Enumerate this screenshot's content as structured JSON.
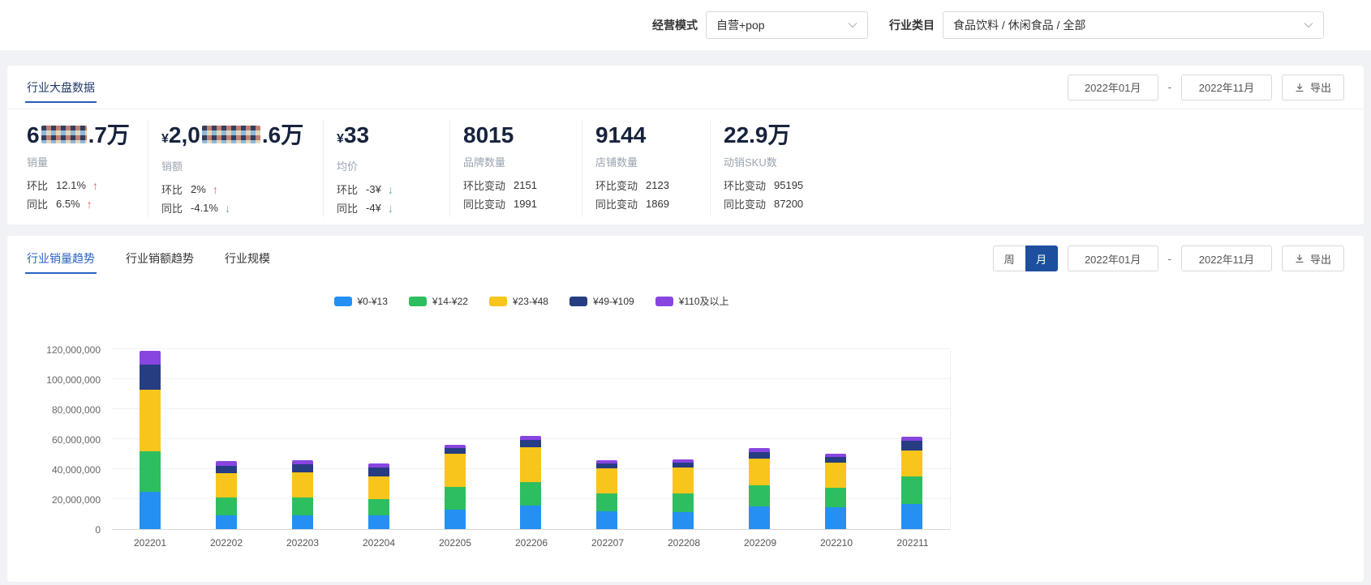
{
  "filters": {
    "mode_label": "经营模式",
    "mode_value": "自营+pop",
    "category_label": "行业类目",
    "category_value": "食品饮料 / 休闲食品 / 全部"
  },
  "overview": {
    "title": "行业大盘数据",
    "date_start": "2022年01月",
    "date_separator": "-",
    "date_end": "2022年11月",
    "export_label": "导出",
    "kpis": [
      {
        "prefix": "6",
        "censored": true,
        "censor_width": 56,
        "suffix": ".7万",
        "label": "销量",
        "metrics": [
          {
            "name": "环比",
            "value": "12.1%",
            "arrow": "up"
          },
          {
            "name": "同比",
            "value": "6.5%",
            "arrow": "up"
          }
        ]
      },
      {
        "currency": "¥",
        "prefix": "2,0",
        "censored": true,
        "censor_width": 72,
        "suffix": ".6万",
        "label": "销额",
        "metrics": [
          {
            "name": "环比",
            "value": "2%",
            "arrow": "up"
          },
          {
            "name": "同比",
            "value": "-4.1%",
            "arrow": "down"
          }
        ]
      },
      {
        "currency": "¥",
        "prefix": "33",
        "censored": false,
        "label": "均价",
        "metrics": [
          {
            "name": "环比",
            "value": "-3¥",
            "arrow": "down"
          },
          {
            "name": "同比",
            "value": "-4¥",
            "arrow": "down"
          }
        ]
      },
      {
        "prefix": "8015",
        "censored": false,
        "label": "品牌数量",
        "metrics": [
          {
            "name": "环比变动",
            "value": "2151"
          },
          {
            "name": "同比变动",
            "value": "1991"
          }
        ]
      },
      {
        "prefix": "9144",
        "censored": false,
        "label": "店铺数量",
        "metrics": [
          {
            "name": "环比变动",
            "value": "2123"
          },
          {
            "name": "同比变动",
            "value": "1869"
          }
        ]
      },
      {
        "prefix": "22.9万",
        "censored": false,
        "label": "动销SKU数",
        "metrics": [
          {
            "name": "环比变动",
            "value": "95195"
          },
          {
            "name": "同比变动",
            "value": "87200"
          }
        ]
      }
    ],
    "arrow_up_glyph": "↑",
    "arrow_down_glyph": "↓"
  },
  "trends": {
    "tabs": [
      {
        "label": "行业销量趋势",
        "active": true
      },
      {
        "label": "行业销额趋势",
        "active": false
      },
      {
        "label": "行业规模",
        "active": false
      }
    ],
    "period_options": [
      {
        "label": "周",
        "active": false
      },
      {
        "label": "月",
        "active": true
      }
    ],
    "date_start": "2022年01月",
    "date_separator": "-",
    "date_end": "2022年11月",
    "export_label": "导出"
  },
  "chart_data": {
    "type": "bar",
    "stacked": true,
    "title": "",
    "xlabel": "",
    "ylabel": "",
    "categories": [
      "202201",
      "202202",
      "202203",
      "202204",
      "202205",
      "202206",
      "202207",
      "202208",
      "202209",
      "202210",
      "202211"
    ],
    "series": [
      {
        "name": "¥0-¥13",
        "color": "#2590f2",
        "values": [
          25000000,
          9000000,
          9000000,
          9000000,
          13000000,
          15500000,
          12000000,
          11500000,
          15000000,
          14500000,
          16500000
        ]
      },
      {
        "name": "¥14-¥22",
        "color": "#2dbe60",
        "values": [
          27000000,
          12000000,
          12000000,
          11000000,
          15000000,
          15500000,
          12000000,
          12500000,
          14000000,
          13000000,
          18500000
        ]
      },
      {
        "name": "¥23-¥48",
        "color": "#f8c51c",
        "values": [
          41000000,
          16000000,
          16500000,
          15000000,
          22000000,
          23000000,
          17000000,
          17500000,
          18000000,
          16500000,
          17500000
        ]
      },
      {
        "name": "¥49-¥109",
        "color": "#263d82",
        "values": [
          17000000,
          5000000,
          5500000,
          6000000,
          4000000,
          5000000,
          3500000,
          3000000,
          4500000,
          4000000,
          6500000
        ]
      },
      {
        "name": "¥110及以上",
        "color": "#8845e0",
        "values": [
          9000000,
          3000000,
          2500000,
          2500000,
          2000000,
          2500000,
          2000000,
          2000000,
          2500000,
          2000000,
          2500000
        ]
      }
    ],
    "ylim": [
      0,
      120000000
    ],
    "ytick_step": 20000000,
    "grid": true,
    "legend_position": "top"
  },
  "colors": {
    "accent_blue": "#2a62c4",
    "section_underline": "#2a5db5",
    "toggle_active_bg": "#1d4f9e",
    "up_red": "#e25f5f",
    "down_green": "#58bd72"
  }
}
